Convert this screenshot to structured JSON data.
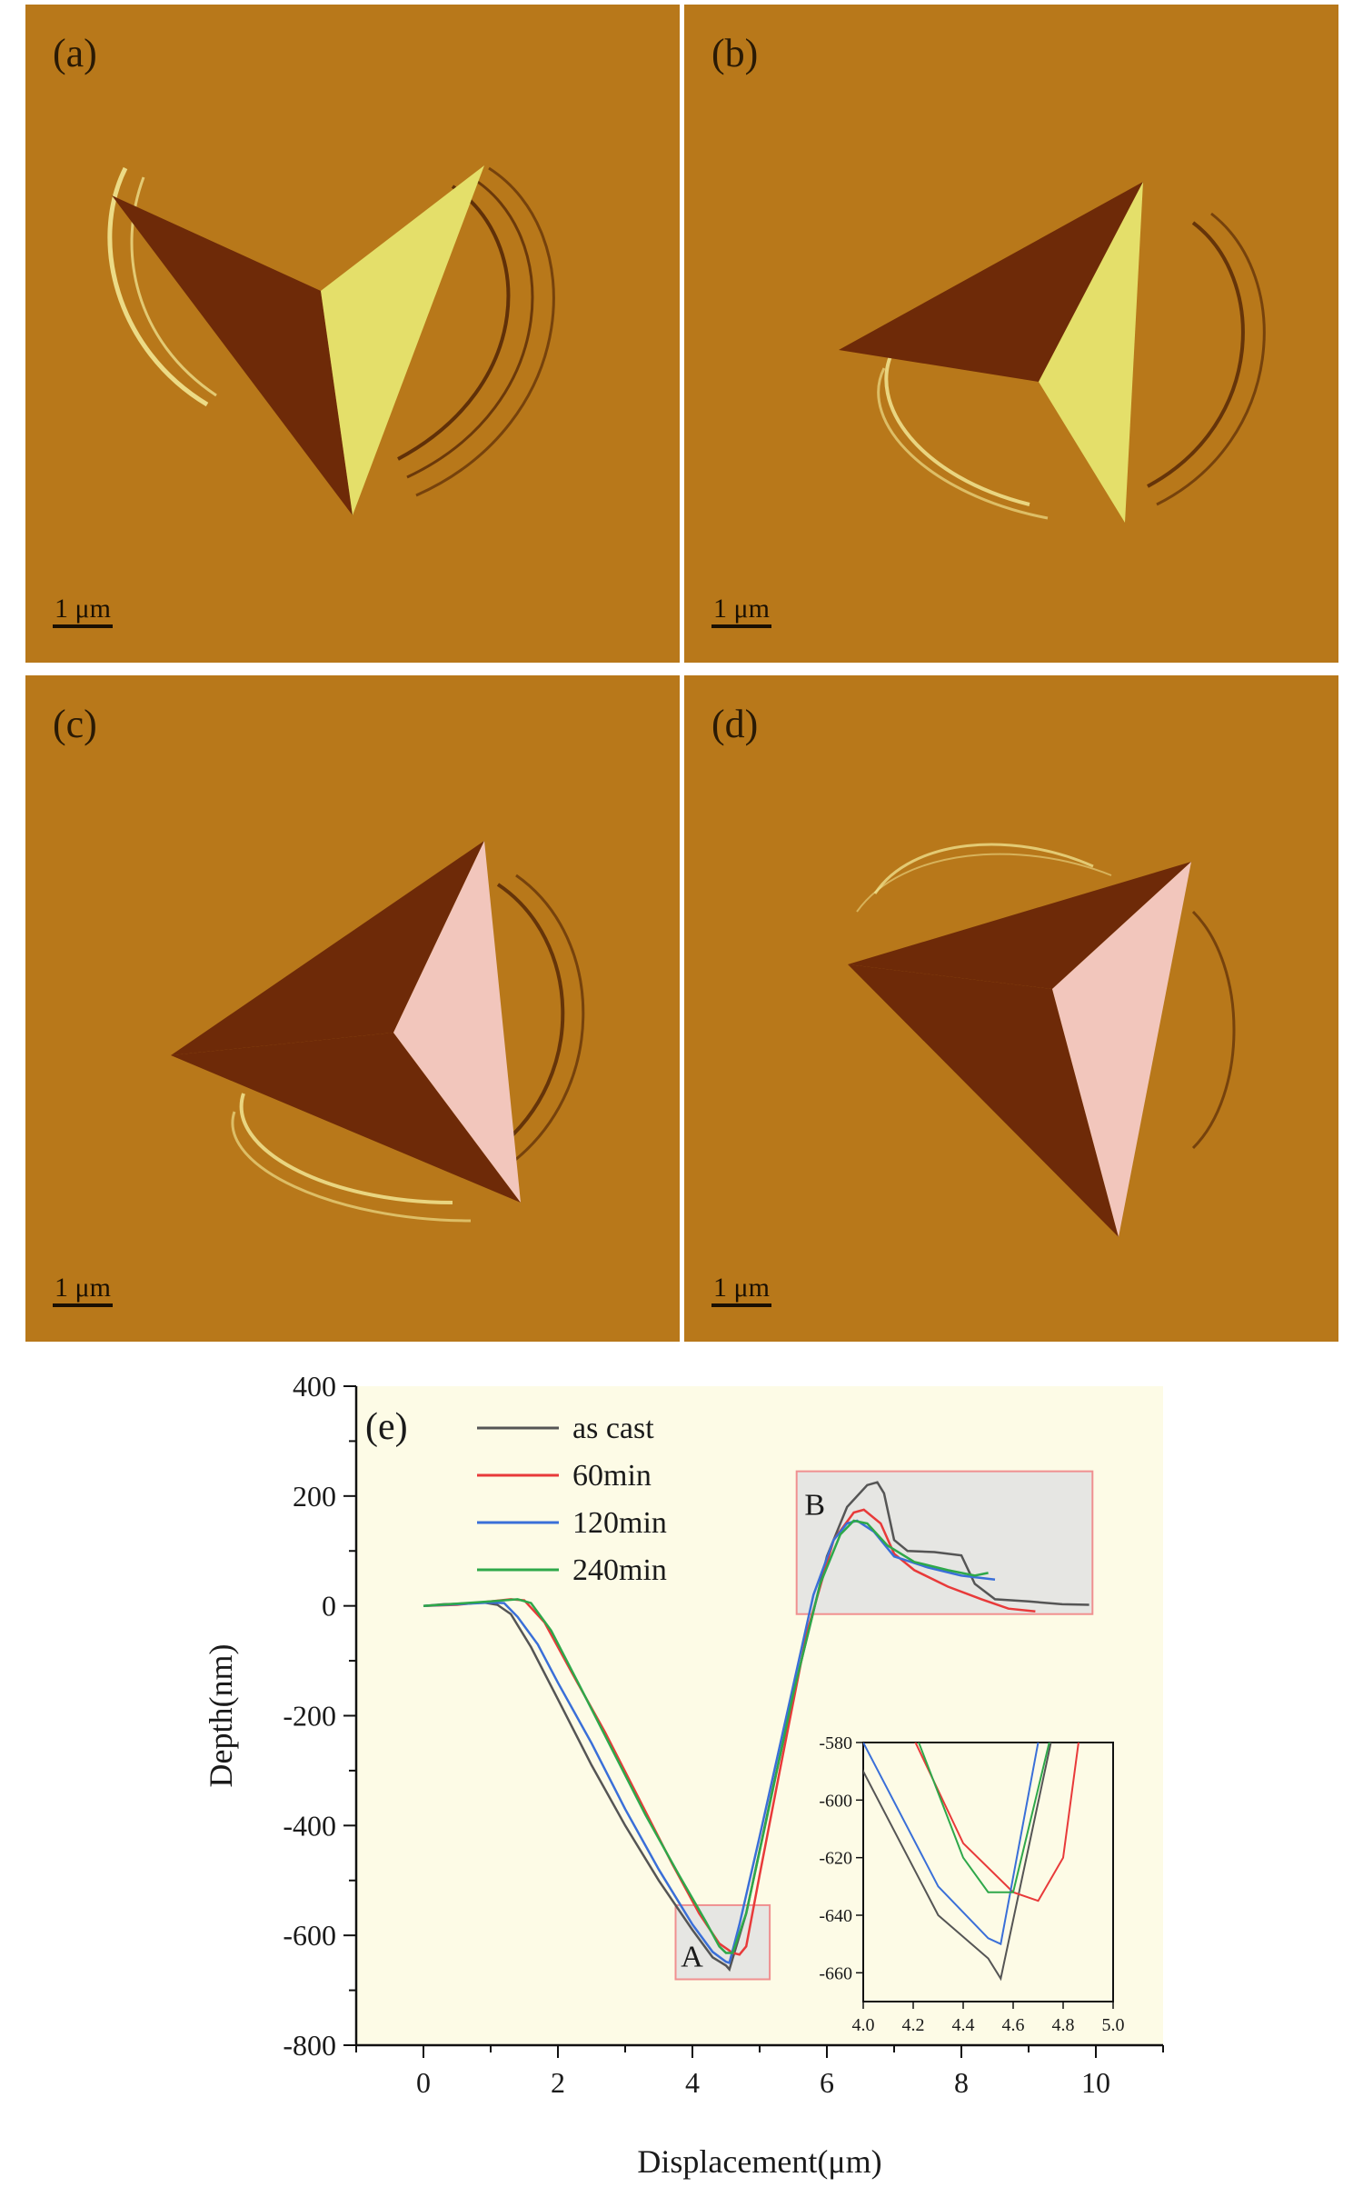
{
  "micrographs": [
    {
      "label": "(a)",
      "scale": "1 μm"
    },
    {
      "label": "(b)",
      "scale": "1 μm"
    },
    {
      "label": "(c)",
      "scale": "1 μm"
    },
    {
      "label": "(d)",
      "scale": "1 μm"
    }
  ],
  "colors": {
    "background_tan": "#b8781a",
    "shadow_face": "#6e2a08",
    "bright_face_ab": "#e4df6a",
    "bright_face_cd": "#f2c6bc",
    "plot_background": "#fdfbe6"
  },
  "chart_data": {
    "type": "line",
    "panel_label": "(e)",
    "xlabel": "Displacement(μm)",
    "ylabel": "Depth(nm)",
    "xlim": [
      -1,
      11
    ],
    "ylim": [
      -800,
      400
    ],
    "xticks": [
      "0",
      "2",
      "4",
      "6",
      "8",
      "10"
    ],
    "yticks": [
      "400",
      "200",
      "0",
      "-200",
      "-400",
      "-600",
      "-800"
    ],
    "legend_position": "top-left",
    "series": [
      {
        "name": "as cast",
        "color": "#555555",
        "x": [
          0,
          0.3,
          0.6,
          0.9,
          1.1,
          1.3,
          1.6,
          2.0,
          2.5,
          3.0,
          3.5,
          4.0,
          4.3,
          4.5,
          4.55,
          4.8,
          5.2,
          5.6,
          6.0,
          6.3,
          6.6,
          6.75,
          6.85,
          7.0,
          7.2,
          7.6,
          8.0,
          8.2,
          8.5,
          9.0,
          9.5,
          9.9
        ],
        "y": [
          0,
          3,
          4,
          6,
          2,
          -15,
          -75,
          -170,
          -290,
          -400,
          -500,
          -590,
          -640,
          -655,
          -662,
          -560,
          -330,
          -110,
          90,
          180,
          220,
          225,
          205,
          120,
          100,
          98,
          92,
          40,
          12,
          8,
          3,
          2
        ]
      },
      {
        "name": "60min",
        "color": "#e83a3a",
        "x": [
          0,
          0.5,
          1.0,
          1.3,
          1.5,
          1.8,
          2.2,
          2.7,
          3.2,
          3.7,
          4.1,
          4.4,
          4.6,
          4.7,
          4.8,
          5.0,
          5.3,
          5.7,
          6.1,
          6.4,
          6.55,
          6.8,
          7.0,
          7.3,
          7.8,
          8.3,
          8.7,
          9.1
        ],
        "y": [
          0,
          2,
          8,
          12,
          10,
          -30,
          -120,
          -230,
          -350,
          -470,
          -560,
          -615,
          -632,
          -635,
          -620,
          -490,
          -300,
          -50,
          120,
          170,
          175,
          150,
          95,
          65,
          35,
          12,
          -5,
          -10
        ]
      },
      {
        "name": "120min",
        "color": "#3a6fd8",
        "x": [
          0,
          0.5,
          1.0,
          1.2,
          1.4,
          1.7,
          2.0,
          2.5,
          3.0,
          3.5,
          4.0,
          4.3,
          4.5,
          4.55,
          4.7,
          5.0,
          5.4,
          5.8,
          6.1,
          6.3,
          6.45,
          6.7,
          7.0,
          7.5,
          8.0,
          8.5
        ],
        "y": [
          0,
          3,
          6,
          5,
          -20,
          -70,
          -140,
          -250,
          -370,
          -480,
          -580,
          -630,
          -648,
          -650,
          -580,
          -420,
          -200,
          20,
          120,
          150,
          155,
          135,
          90,
          70,
          55,
          48
        ]
      },
      {
        "name": "240min",
        "color": "#2ea84a",
        "x": [
          0,
          0.5,
          1.0,
          1.4,
          1.6,
          1.9,
          2.3,
          2.8,
          3.3,
          3.8,
          4.2,
          4.4,
          4.5,
          4.6,
          4.8,
          5.1,
          5.5,
          5.9,
          6.2,
          6.4,
          6.6,
          6.9,
          7.3,
          7.8,
          8.2,
          8.4
        ],
        "y": [
          0,
          4,
          8,
          12,
          5,
          -45,
          -140,
          -260,
          -380,
          -490,
          -575,
          -620,
          -632,
          -632,
          -560,
          -390,
          -160,
          40,
          130,
          155,
          150,
          110,
          80,
          65,
          55,
          60
        ]
      }
    ],
    "annotations": [
      {
        "label": "A",
        "box_x": [
          3.75,
          5.15
        ],
        "box_y": [
          -680,
          -545
        ]
      },
      {
        "label": "B",
        "box_x": [
          5.55,
          9.95
        ],
        "box_y": [
          -15,
          245
        ]
      }
    ],
    "inset": {
      "xlim": [
        4.0,
        5.0
      ],
      "ylim": [
        -670,
        -580
      ],
      "xticks": [
        "4.0",
        "4.2",
        "4.4",
        "4.6",
        "4.8",
        "5.0"
      ],
      "yticks": [
        "-580",
        "-600",
        "-620",
        "-640",
        "-660"
      ]
    }
  }
}
